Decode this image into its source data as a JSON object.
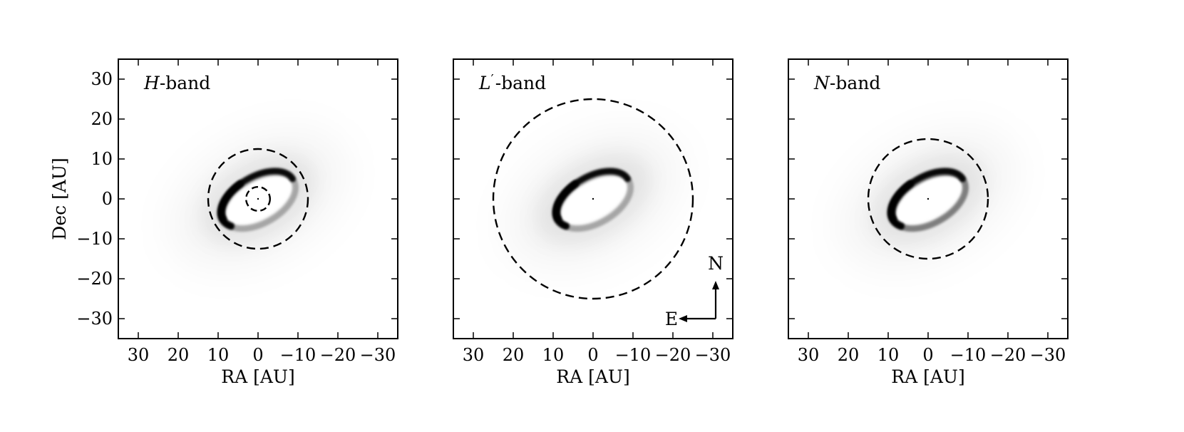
{
  "figure": {
    "ylabel": "Dec [AU]",
    "tick_values": [
      30,
      20,
      10,
      0,
      -10,
      -20,
      -30
    ],
    "tick_labels": [
      "30",
      "20",
      "10",
      "0",
      "−10",
      "−20",
      "−30"
    ],
    "axis_range": [
      35,
      -35
    ]
  },
  "compass": {
    "north": "N",
    "east": "E"
  },
  "chart_data": [
    {
      "type": "heatmap",
      "panel": "H-band",
      "band_letter": "H",
      "band_prime": "",
      "band_suffix": "-band",
      "xlabel": "RA [AU]",
      "ylabel": "Dec [AU]",
      "xlim": [
        35,
        -35
      ],
      "ylim": [
        -35,
        35
      ],
      "ring_radius": 10,
      "ring_inclination_ratio": 0.56,
      "ring_position_angle_deg": 60,
      "ring_center": [
        0,
        0
      ],
      "dashed_circles": [
        {
          "center": [
            0,
            0
          ],
          "radius": 12.5
        },
        {
          "center": [
            0,
            0
          ],
          "radius": 3
        }
      ]
    },
    {
      "type": "heatmap",
      "panel": "L'-band",
      "band_letter": "L",
      "band_prime": "′",
      "band_suffix": "-band",
      "xlabel": "RA [AU]",
      "xlim": [
        35,
        -35
      ],
      "ylim": [
        -35,
        35
      ],
      "ring_radius": 10,
      "ring_inclination_ratio": 0.56,
      "ring_position_angle_deg": 60,
      "ring_center": [
        0,
        0
      ],
      "dashed_circles": [
        {
          "center": [
            0,
            0
          ],
          "radius": 25
        }
      ]
    },
    {
      "type": "heatmap",
      "panel": "N-band",
      "band_letter": "N",
      "band_prime": "",
      "band_suffix": "-band",
      "xlabel": "RA [AU]",
      "xlim": [
        35,
        -35
      ],
      "ylim": [
        -35,
        35
      ],
      "ring_radius": 10,
      "ring_inclination_ratio": 0.56,
      "ring_position_angle_deg": 60,
      "ring_center": [
        0,
        0
      ],
      "dashed_circles": [
        {
          "center": [
            0,
            0
          ],
          "radius": 15
        }
      ]
    }
  ]
}
